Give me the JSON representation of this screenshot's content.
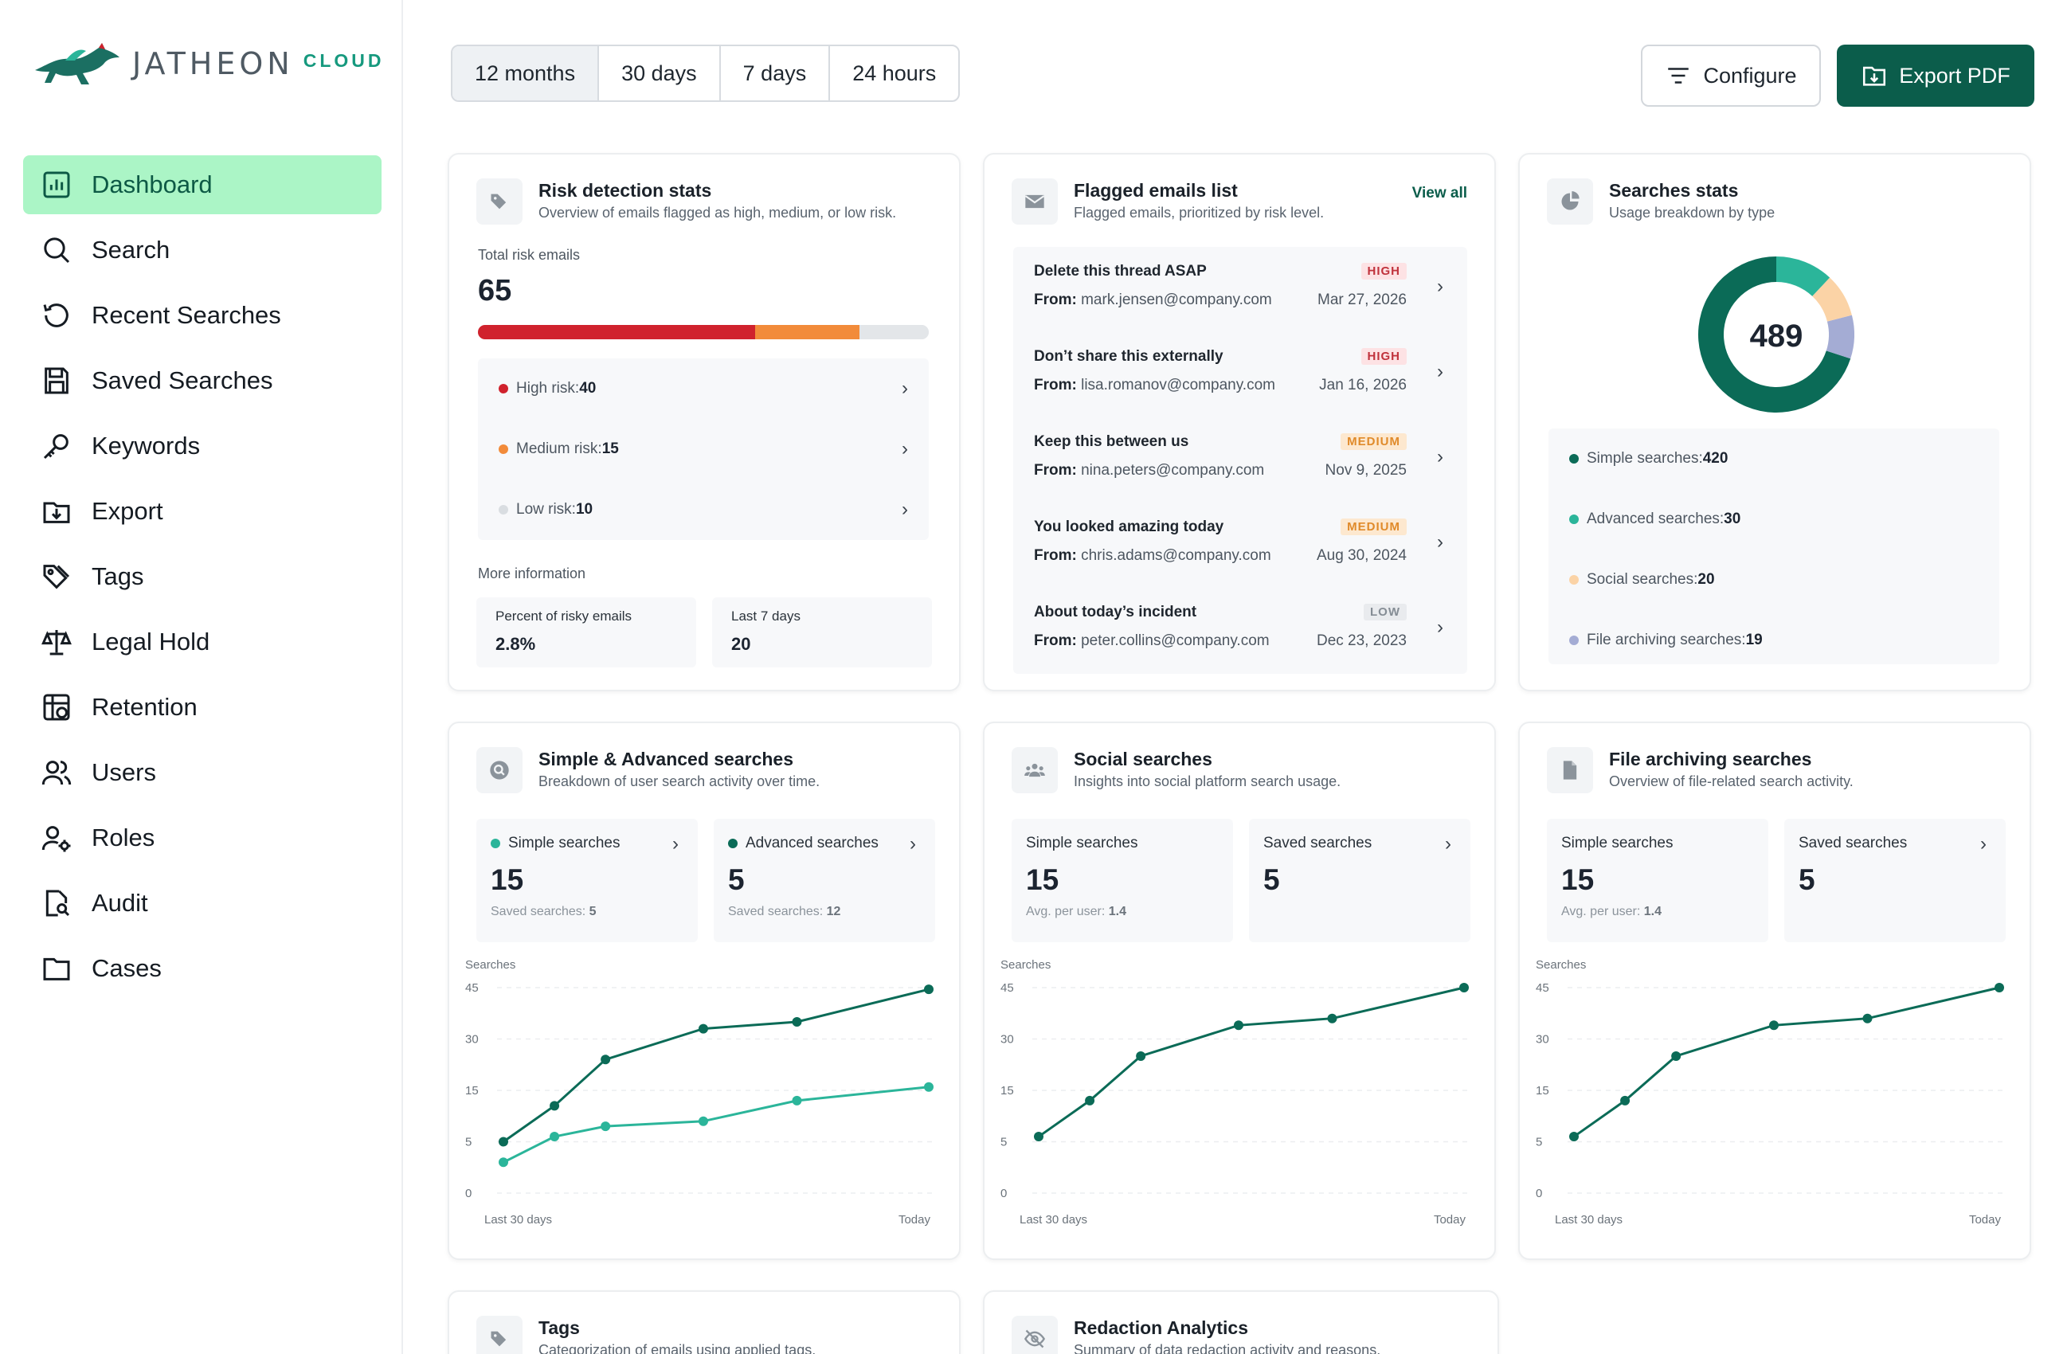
{
  "brand": {
    "name": "JATHEON",
    "sub": "CLOUD"
  },
  "sidebar": {
    "items": [
      {
        "label": "Dashboard",
        "icon": "bar-chart-icon",
        "active": true
      },
      {
        "label": "Search",
        "icon": "search-icon"
      },
      {
        "label": "Recent Searches",
        "icon": "history-icon"
      },
      {
        "label": "Saved Searches",
        "icon": "save-icon"
      },
      {
        "label": "Keywords",
        "icon": "key-icon"
      },
      {
        "label": "Export",
        "icon": "export-icon"
      },
      {
        "label": "Tags",
        "icon": "tags-icon"
      },
      {
        "label": "Legal Hold",
        "icon": "scale-icon"
      },
      {
        "label": "Retention",
        "icon": "retention-icon"
      },
      {
        "label": "Users",
        "icon": "users-icon"
      },
      {
        "label": "Roles",
        "icon": "roles-icon"
      },
      {
        "label": "Audit",
        "icon": "audit-icon"
      },
      {
        "label": "Cases",
        "icon": "folder-icon"
      }
    ]
  },
  "toolbar": {
    "ranges": [
      "12 months",
      "30 days",
      "7 days",
      "24 hours"
    ],
    "active_range": "12 months",
    "configure_label": "Configure",
    "export_label": "Export PDF"
  },
  "risk": {
    "title": "Risk detection stats",
    "subtitle": "Overview of emails flagged as high, medium, or low risk.",
    "total_label": "Total risk emails",
    "total": "65",
    "bar": {
      "high": 40,
      "medium": 15,
      "low": 10
    },
    "rows": [
      {
        "label": "High risk: ",
        "value": "40",
        "color": "#d0222d"
      },
      {
        "label": "Medium risk: ",
        "value": "15",
        "color": "#f28b3a"
      },
      {
        "label": "Low risk: ",
        "value": "10",
        "color": "#d9dde1"
      }
    ],
    "more_label": "More information",
    "percent_label": "Percent of risky emails",
    "percent_value": "2.8%",
    "last7_label": "Last 7 days",
    "last7_value": "20"
  },
  "flagged": {
    "title": "Flagged emails list",
    "subtitle": "Flagged emails, prioritized by risk level.",
    "view_all": "View all",
    "from_label": "From:",
    "emails": [
      {
        "subject": "Delete this thread ASAP",
        "from": "mark.jensen@company.com",
        "date": "Mar 27, 2026",
        "level": "HIGH"
      },
      {
        "subject": "Don’t share this externally",
        "from": "lisa.romanov@company.com",
        "date": "Jan 16, 2026",
        "level": "HIGH"
      },
      {
        "subject": "Keep this between us",
        "from": "nina.peters@company.com",
        "date": "Nov 9, 2025",
        "level": "MEDIUM"
      },
      {
        "subject": "You looked amazing today",
        "from": "chris.adams@company.com",
        "date": "Aug 30, 2024",
        "level": "MEDIUM"
      },
      {
        "subject": "About today’s incident",
        "from": "peter.collins@company.com",
        "date": "Dec 23, 2023",
        "level": "LOW"
      }
    ]
  },
  "searches": {
    "title": "Searches stats",
    "subtitle": "Usage breakdown by type",
    "total": "489",
    "items": [
      {
        "label": "Simple searches: ",
        "value": "420",
        "color": "#0b6b57"
      },
      {
        "label": "Advanced searches: ",
        "value": "30",
        "color": "#2bb59a"
      },
      {
        "label": "Social searches: ",
        "value": "20",
        "color": "#fbd3a6"
      },
      {
        "label": "File archiving searches: ",
        "value": "19",
        "color": "#a4acd4"
      }
    ]
  },
  "simple_adv": {
    "title": "Simple & Advanced searches",
    "subtitle": "Breakdown of user search activity over time.",
    "box1": {
      "title": "Simple searches",
      "value": "15",
      "foot_label": "Saved searches: ",
      "foot_value": "5",
      "dot": "#2bb59a"
    },
    "box2": {
      "title": "Advanced searches",
      "value": "5",
      "foot_label": "Saved searches: ",
      "foot_value": "12",
      "dot": "#0b6b57"
    }
  },
  "social": {
    "title": "Social searches",
    "subtitle": "Insights into social platform search usage.",
    "box1": {
      "title": "Simple searches",
      "value": "15",
      "foot_label": "Avg. per user: ",
      "foot_value": "1.4"
    },
    "box2": {
      "title": "Saved searches",
      "value": "5"
    }
  },
  "file_arch": {
    "title": "File archiving searches",
    "subtitle": "Overview of file-related search activity.",
    "box1": {
      "title": "Simple searches",
      "value": "15",
      "foot_label": "Avg. per user: ",
      "foot_value": "1.4"
    },
    "box2": {
      "title": "Saved searches",
      "value": "5"
    }
  },
  "tags_card": {
    "title": "Tags",
    "subtitle": "Categorization of emails using applied tags."
  },
  "redaction_card": {
    "title": "Redaction Analytics",
    "subtitle": "Summary of data redaction activity and reasons."
  },
  "chart_data": [
    {
      "type": "line",
      "title": "Simple & Advanced searches",
      "ylabel": "Searches",
      "yticks": [
        0,
        5,
        15,
        30,
        45
      ],
      "ylim": [
        0,
        45
      ],
      "x_start_label": "Last 30 days",
      "x_end_label": "Today",
      "series": [
        {
          "values": [
            5,
            12,
            24,
            33,
            35,
            44.5
          ],
          "color": "#0b6b57"
        },
        {
          "values": [
            3,
            6,
            8,
            9,
            13,
            16
          ],
          "color": "#2bb59a"
        }
      ]
    },
    {
      "type": "line",
      "title": "Social searches",
      "ylabel": "Searches",
      "yticks": [
        0,
        5,
        15,
        30,
        45
      ],
      "ylim": [
        0,
        45
      ],
      "x_start_label": "Last 30 days",
      "x_end_label": "Today",
      "series": [
        {
          "values": [
            6,
            13,
            25,
            34,
            36,
            45
          ],
          "color": "#0b6b57"
        }
      ]
    },
    {
      "type": "line",
      "title": "File archiving searches",
      "ylabel": "Searches",
      "yticks": [
        0,
        5,
        15,
        30,
        45
      ],
      "ylim": [
        0,
        45
      ],
      "x_start_label": "Last 30 days",
      "x_end_label": "Today",
      "series": [
        {
          "values": [
            6,
            13,
            25,
            34,
            36,
            45
          ],
          "color": "#0b6b57"
        }
      ]
    }
  ]
}
